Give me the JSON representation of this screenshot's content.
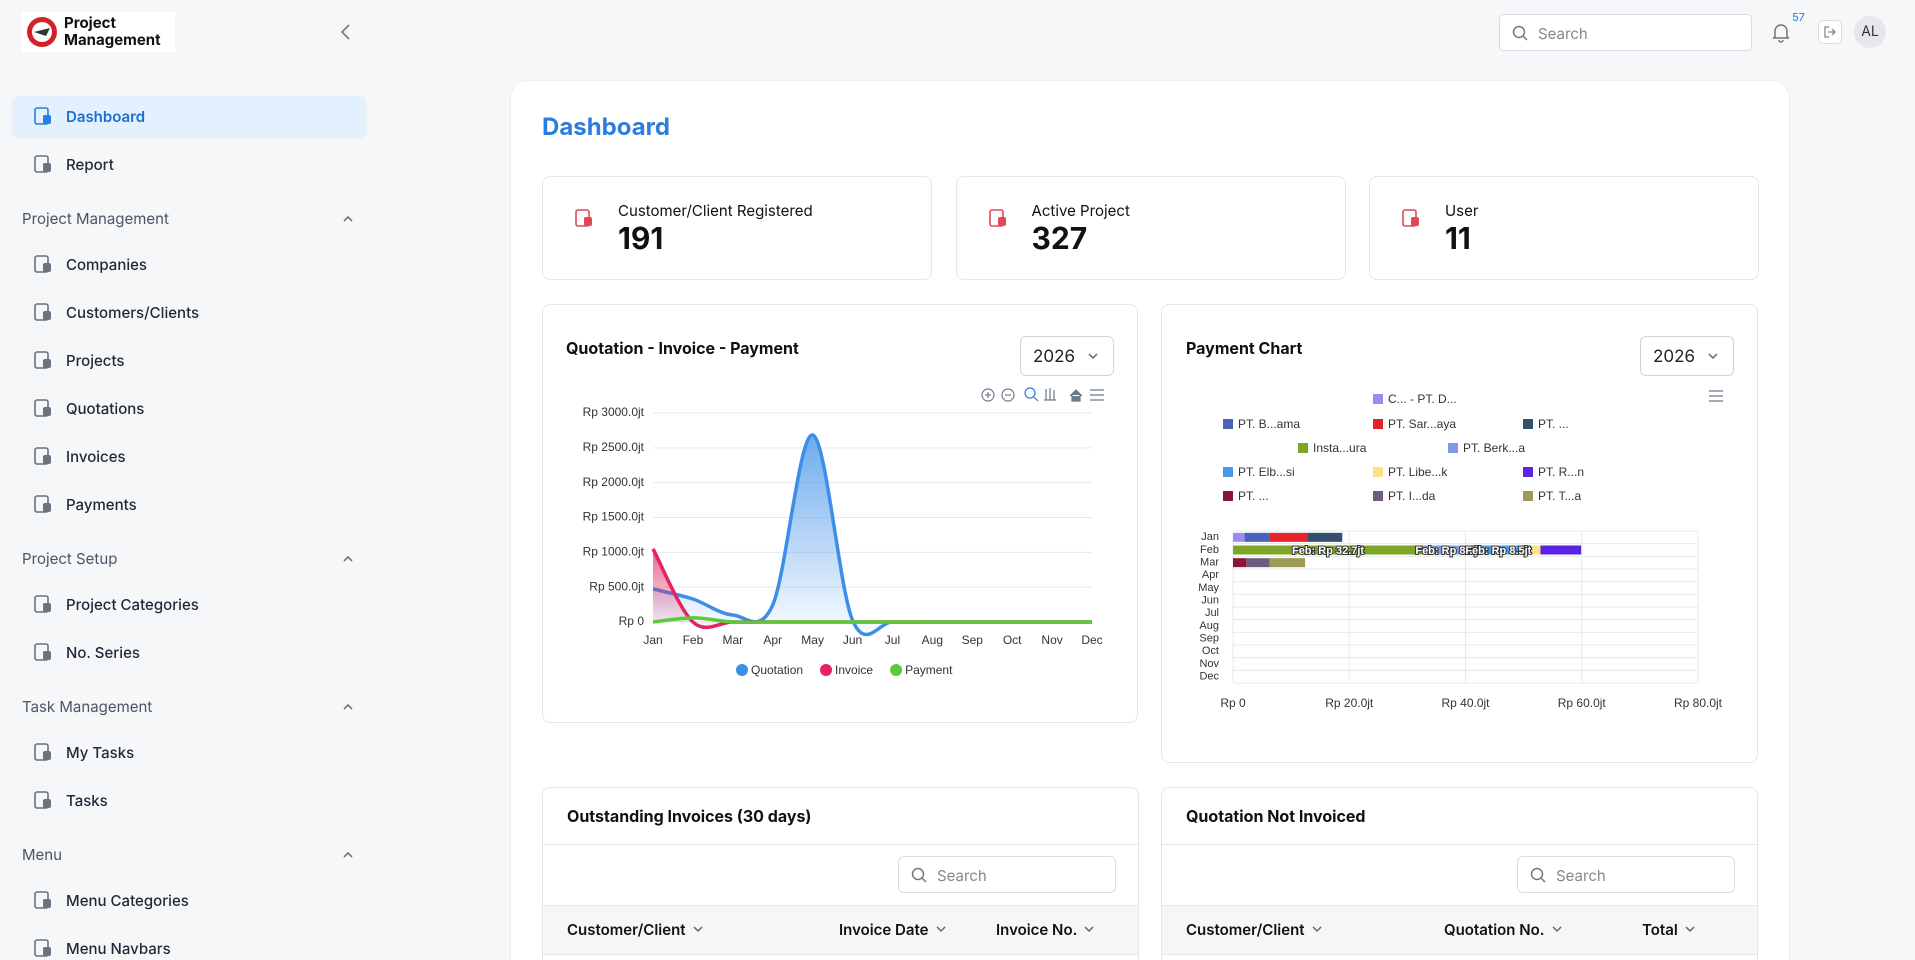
{
  "header": {
    "logo_line1": "Project",
    "logo_line2": "Management",
    "search_placeholder": "Search",
    "notifications": 57,
    "avatar": "AL"
  },
  "sidebar": [
    {
      "label": "Dashboard",
      "active": true
    },
    {
      "label": "Report"
    },
    {
      "section": "Project Management",
      "items": [
        "Companies",
        "Customers/Clients",
        "Projects",
        "Quotations",
        "Invoices",
        "Payments"
      ]
    },
    {
      "section": "Project Setup",
      "items": [
        "Project Categories",
        "No. Series"
      ]
    },
    {
      "section": "Task Management",
      "items": [
        "My Tasks",
        "Tasks"
      ]
    },
    {
      "section": "Menu",
      "items": [
        "Menu Categories",
        "Menu Navbars"
      ]
    }
  ],
  "page_title": "Dashboard",
  "stats": [
    {
      "label": "Customer/Client Registered",
      "value": 191
    },
    {
      "label": "Active Project",
      "value": 327
    },
    {
      "label": "User",
      "value": 11
    }
  ],
  "chart_data": [
    {
      "type": "line",
      "title": "Quotation - Invoice - Payment",
      "year": 2026,
      "legend": "bottom",
      "categories": [
        "Jan",
        "Feb",
        "Mar",
        "Apr",
        "May",
        "Jun",
        "Jul",
        "Aug",
        "Sep",
        "Oct",
        "Nov",
        "Dec"
      ],
      "ylim": [
        0,
        3000
      ],
      "yticks": [
        {
          "value": 0,
          "label": "Rp 0"
        },
        {
          "value": 500,
          "label": "Rp 500.0jt"
        },
        {
          "value": 1000,
          "label": "Rp 1000.0jt"
        },
        {
          "value": 1500,
          "label": "Rp 1500.0jt"
        },
        {
          "value": 2000,
          "label": "Rp 2000.0jt"
        },
        {
          "value": 2500,
          "label": "Rp 2500.0jt"
        },
        {
          "value": 3000,
          "label": "Rp 3000.0jt"
        }
      ],
      "grid": true,
      "series": [
        {
          "name": "Quotation",
          "color": "#3d8ee8",
          "area": true,
          "values": [
            474,
            330,
            100,
            245,
            2684,
            25,
            0,
            0,
            0,
            0,
            0,
            0
          ]
        },
        {
          "name": "Invoice",
          "color": "#e4245f",
          "area": true,
          "values": [
            1050,
            0,
            0,
            0,
            0,
            0,
            0,
            0,
            0,
            0,
            0,
            0
          ]
        },
        {
          "name": "Payment",
          "color": "#5cc93a",
          "area": false,
          "values": [
            0,
            60,
            0,
            0,
            0,
            0,
            0,
            0,
            0,
            0,
            0,
            0
          ]
        }
      ]
    },
    {
      "type": "bar",
      "orientation": "horizontal",
      "stacked": true,
      "title": "Payment Chart",
      "year": 2026,
      "legend": "top",
      "categories": [
        "Jan",
        "Feb",
        "Mar",
        "Apr",
        "May",
        "Jun",
        "Jul",
        "Aug",
        "Sep",
        "Oct",
        "Nov",
        "Dec"
      ],
      "xlim": [
        0,
        80
      ],
      "xticks": [
        {
          "value": 0,
          "label": "Rp 0"
        },
        {
          "value": 20,
          "label": "Rp 20.0jt"
        },
        {
          "value": 40,
          "label": "Rp 40.0jt"
        },
        {
          "value": 60,
          "label": "Rp 60.0jt"
        },
        {
          "value": 80,
          "label": "Rp 80.0jt"
        }
      ],
      "series": [
        {
          "name": "C... - PT. D...",
          "color": "#9b8cf2",
          "values": [
            2,
            0,
            0,
            0,
            0,
            0,
            0,
            0,
            0,
            0,
            0,
            0
          ]
        },
        {
          "name": "PT. B...ama",
          "color": "#4a62b8",
          "values": [
            4.3,
            0,
            0,
            0,
            0,
            0,
            0,
            0,
            0,
            0,
            0,
            0
          ]
        },
        {
          "name": "PT. Sar...aya",
          "color": "#e8222a",
          "values": [
            6.5,
            0,
            0,
            0,
            0,
            0,
            0,
            0,
            0,
            0,
            0,
            0
          ]
        },
        {
          "name": "PT. ...",
          "color": "#34506f",
          "values": [
            6,
            0,
            0,
            0,
            0,
            0,
            0,
            0,
            0,
            0,
            0,
            0
          ]
        },
        {
          "name": "Insta...ura",
          "color": "#7da526",
          "values": [
            0,
            32.7,
            0,
            0,
            0,
            0,
            0,
            0,
            0,
            0,
            0,
            0
          ],
          "value_labels": [
            null,
            "Feb: Rp 32.7jt",
            null,
            null,
            null,
            null,
            null,
            null,
            null,
            null,
            null,
            null
          ]
        },
        {
          "name": "PT. Berk...a",
          "color": "#7f9be6",
          "values": [
            0,
            8.7,
            0,
            0,
            0,
            0,
            0,
            0,
            0,
            0,
            0,
            0
          ],
          "value_labels": [
            null,
            "Feb: Rp 8.7jt",
            null,
            null,
            null,
            null,
            null,
            null,
            null,
            null,
            null,
            null
          ]
        },
        {
          "name": "PT. Elb...si",
          "color": "#4b9ae8",
          "values": [
            0,
            8.5,
            0,
            0,
            0,
            0,
            0,
            0,
            0,
            0,
            0,
            0
          ],
          "value_labels": [
            null,
            "Feb: Rp 8.5jt",
            null,
            null,
            null,
            null,
            null,
            null,
            null,
            null,
            null,
            null
          ]
        },
        {
          "name": "PT. Libe...k",
          "color": "#fbe084",
          "values": [
            0,
            3,
            0,
            0,
            0,
            0,
            0,
            0,
            0,
            0,
            0,
            0
          ]
        },
        {
          "name": "PT. R...n",
          "color": "#5b22e6",
          "values": [
            0,
            7,
            0,
            0,
            0,
            0,
            0,
            0,
            0,
            0,
            0,
            0
          ]
        },
        {
          "name": "PT. ...",
          "color": "#8a1538",
          "values": [
            0,
            0,
            2.3,
            0,
            0,
            0,
            0,
            0,
            0,
            0,
            0,
            0
          ]
        },
        {
          "name": "PT. I...da",
          "color": "#6f5a80",
          "values": [
            0,
            0,
            4,
            0,
            0,
            0,
            0,
            0,
            0,
            0,
            0,
            0
          ]
        },
        {
          "name": "PT. T...a",
          "color": "#9d9a55",
          "values": [
            0,
            0,
            6.1,
            0,
            0,
            0,
            0,
            0,
            0,
            0,
            0,
            0
          ]
        }
      ]
    }
  ],
  "tables": [
    {
      "title": "Outstanding Invoices (30 days)",
      "search_placeholder": "Search",
      "columns": [
        "Customer/Client",
        "Invoice Date",
        "Invoice No."
      ]
    },
    {
      "title": "Quotation Not Invoiced",
      "search_placeholder": "Search",
      "columns": [
        "Customer/Client",
        "Quotation No.",
        "Total"
      ]
    }
  ]
}
